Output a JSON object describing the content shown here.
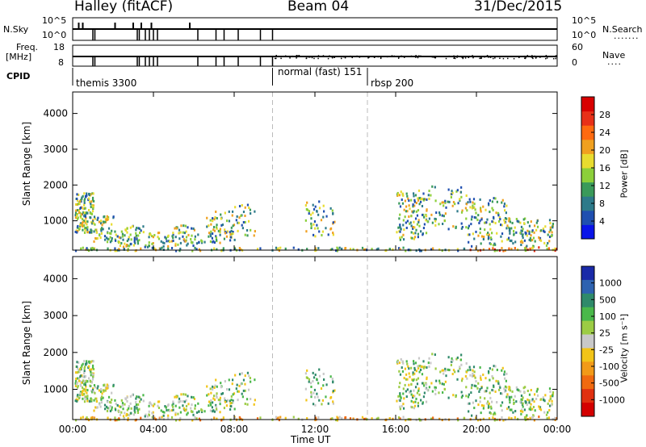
{
  "header": {
    "station": "Halley (fitACF)",
    "beam": "Beam 04",
    "date": "31/Dec/2015"
  },
  "strip_labels": {
    "nsky": "N.Sky",
    "nsky_top": "10^5",
    "nsky_bot": "10^0",
    "nsearch": "N.Search",
    "nsearch_top": "10^5",
    "nsearch_bot": "10^0",
    "freq_l1": "Freq.",
    "freq_l2": "[MHz]",
    "freq_top": "18",
    "freq_bot": "8",
    "nave": "Nave",
    "nave_top": "60",
    "nave_bot": "0",
    "cpid": "CPID",
    "cpid_modes": [
      "themis 3300",
      "normal (fast) 151",
      "rbsp 200"
    ]
  },
  "colors": {
    "power": [
      "#0a14e8",
      "#1f4fb0",
      "#2d7a8a",
      "#3a9a5a",
      "#8ccf3a",
      "#e8dc30",
      "#f0a020",
      "#ff6a10",
      "#e83018",
      "#d80000"
    ],
    "velocity": [
      "#1a2aa8",
      "#2e62b0",
      "#2f8a6a",
      "#4ab84a",
      "#9ccc44",
      "#c8c8c8",
      "#f2c418",
      "#f29a18",
      "#f06a10",
      "#e03010",
      "#d40000"
    ]
  },
  "chart_data": [
    {
      "type": "heatmap",
      "title": "",
      "xlabel": "",
      "ylabel": "Slant Range [km]",
      "xlim": [
        "00:00",
        "00:00"
      ],
      "ylim": [
        180,
        4600
      ],
      "x_ticks": [
        "00:00",
        "04:00",
        "08:00",
        "12:00",
        "16:00",
        "20:00",
        "00:00"
      ],
      "y_ticks": [
        1000,
        2000,
        3000,
        4000
      ],
      "colorbar": {
        "label": "Power [dB]",
        "ticks": [
          4,
          8,
          12,
          16,
          20,
          24,
          28
        ]
      },
      "mode_boundaries_hours": [
        9.9,
        14.6
      ]
    },
    {
      "type": "heatmap",
      "title": "",
      "xlabel": "Time UT",
      "ylabel": "Slant Range [km]",
      "xlim": [
        "00:00",
        "00:00"
      ],
      "ylim": [
        180,
        4600
      ],
      "x_ticks": [
        "00:00",
        "04:00",
        "08:00",
        "12:00",
        "16:00",
        "20:00",
        "00:00"
      ],
      "y_ticks": [
        1000,
        2000,
        3000,
        4000
      ],
      "colorbar": {
        "label": "Velocity [m s⁻¹]",
        "ticks": [
          1000,
          500,
          100,
          25,
          -25,
          -100,
          -500,
          -1000
        ]
      },
      "mode_boundaries_hours": [
        9.9,
        14.6
      ]
    }
  ]
}
